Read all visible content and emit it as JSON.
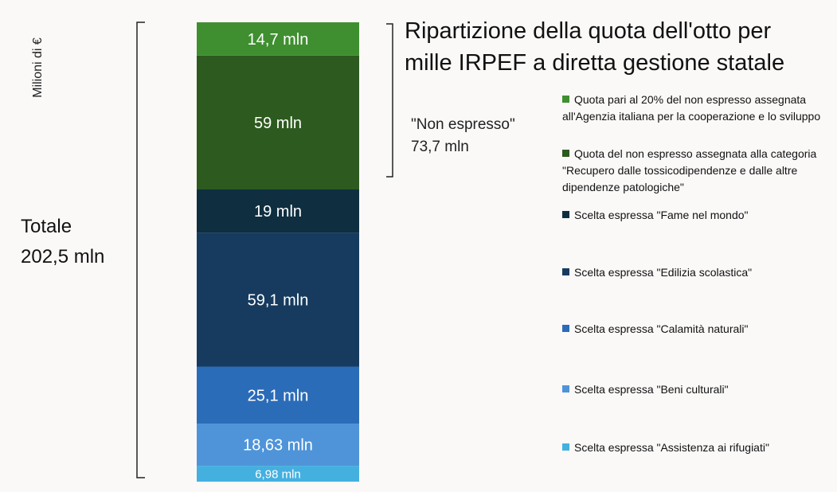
{
  "chart_data": {
    "type": "stacked_bar",
    "title": [
      "Ripartizione della quota dell'otto per",
      "mille IRPEF a diretta gestione statale"
    ],
    "y_label": "Milioni di €",
    "total_label": [
      "Totale",
      "202,5 mln"
    ],
    "group_label": [
      "\"Non espresso\"",
      "73,7 mln"
    ],
    "series": [
      {
        "name": "Scelta espressa \"Assistenza ai rifugiati\"",
        "color": "#44b0e0",
        "values": [
          6.98
        ],
        "value_labels": [
          "6,98  mln"
        ]
      },
      {
        "name": "Scelta espressa \"Beni culturali\"",
        "color": "#4f94d8",
        "values": [
          18.63
        ],
        "value_labels": [
          "18,63  mln"
        ]
      },
      {
        "name": "Scelta espressa \"Calamità naturali\"",
        "color": "#2b6cb8",
        "values": [
          25.1
        ],
        "value_labels": [
          "25,1 mln"
        ]
      },
      {
        "name": "Scelta espressa \"Edilizia scolastica\"",
        "color": "#173b5f",
        "values": [
          59.1
        ],
        "value_labels": [
          "59,1 mln"
        ]
      },
      {
        "name": "Scelta espressa \"Fame nel mondo\"",
        "color": "#0f2f40",
        "values": [
          19
        ],
        "value_labels": [
          "19 mln"
        ]
      },
      {
        "name": "Quota del non espresso assegnata alla categoria \"Recupero dalle tossicodipendenze e dalle altre dipendenze patologiche\"",
        "color": "#2d5a1f",
        "values": [
          59
        ],
        "value_labels": [
          "59 mln"
        ]
      },
      {
        "name": "Quota pari al 20% del non espresso assegnata all'Agenzia italiana per la cooperazione e lo sviluppo",
        "color": "#3f8f30",
        "values": [
          14.7
        ],
        "value_labels": [
          "14,7 mln"
        ]
      }
    ]
  }
}
